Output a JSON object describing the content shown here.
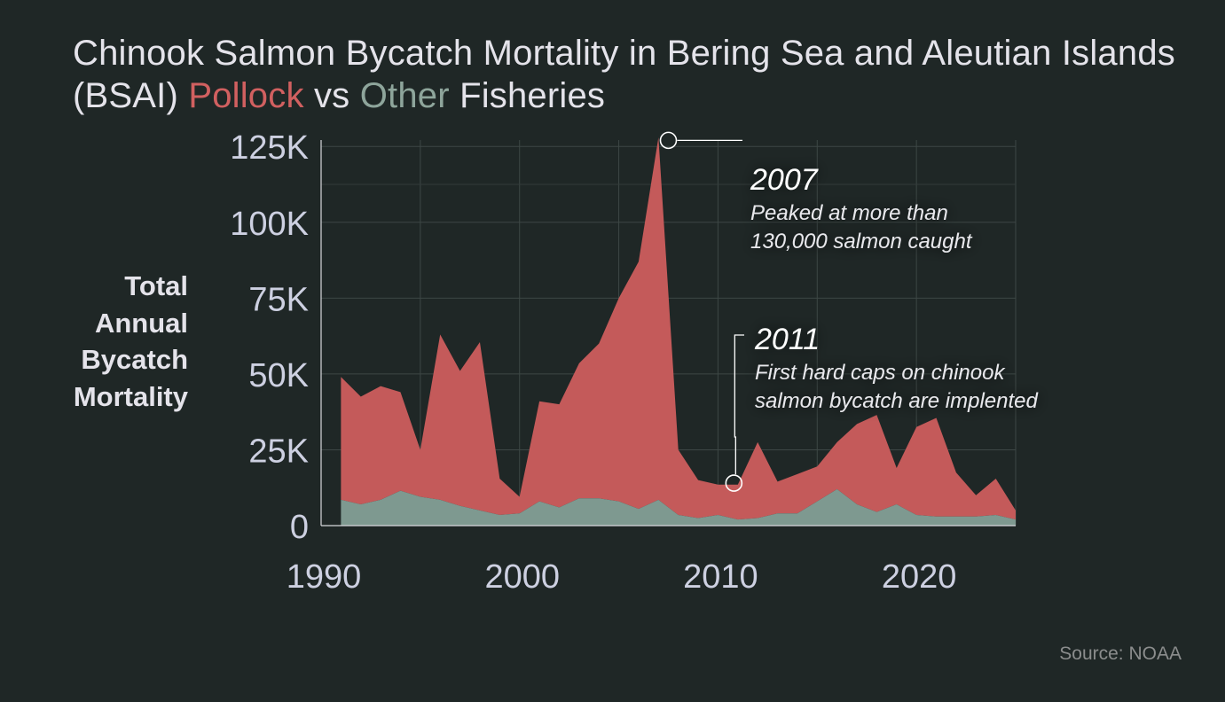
{
  "title": {
    "part1": "Chinook Salmon Bycatch Mortality in Bering Sea and Aleutian Islands (BSAI) ",
    "pollock": "Pollock",
    "mid": " vs ",
    "other": "Other",
    "part2": " Fisheries"
  },
  "ylabel_lines": [
    "Total",
    "Annual",
    "Bycatch",
    "Mortality"
  ],
  "source": "Source: NOAA",
  "chart_data": {
    "type": "area",
    "stacked": true,
    "x": [
      1991,
      1992,
      1993,
      1994,
      1995,
      1996,
      1997,
      1998,
      1999,
      2000,
      2001,
      2002,
      2003,
      2004,
      2005,
      2006,
      2007,
      2008,
      2009,
      2010,
      2011,
      2012,
      2013,
      2014,
      2015,
      2016,
      2017,
      2018,
      2019,
      2020,
      2021,
      2022,
      2023,
      2024,
      2025
    ],
    "series": [
      {
        "name": "Other",
        "color": "#7e9990",
        "values": [
          8500,
          7000,
          8500,
          11500,
          9500,
          8500,
          6500,
          5000,
          3500,
          4000,
          8000,
          6000,
          9000,
          9000,
          8000,
          5500,
          8500,
          3500,
          2500,
          3500,
          2000,
          2500,
          4000,
          4000,
          8000,
          12000,
          7000,
          4500,
          7000,
          3500,
          3000,
          3000,
          3000,
          3500,
          2000
        ]
      },
      {
        "name": "Pollock",
        "color": "#c45a5a",
        "values": [
          40500,
          35500,
          37500,
          32500,
          15500,
          54500,
          44500,
          55500,
          12000,
          5500,
          33000,
          34000,
          44500,
          51000,
          67000,
          81500,
          119500,
          21500,
          12500,
          10000,
          11500,
          25000,
          10500,
          13000,
          11500,
          15500,
          26500,
          32000,
          12000,
          29000,
          32500,
          14500,
          7000,
          12000,
          3000
        ]
      }
    ],
    "xlim": [
      1990,
      2025
    ],
    "ylim": [
      0,
      135000
    ],
    "yticks": [
      0,
      25000,
      50000,
      75000,
      100000,
      125000
    ],
    "ytick_labels": [
      "0",
      "25K",
      "50K",
      "75K",
      "100K",
      "125K"
    ],
    "xticks": [
      1990,
      2000,
      2010,
      2020
    ],
    "xtick_labels": [
      "1990",
      "2000",
      "2010",
      "2020"
    ],
    "grid": true,
    "annotations": [
      {
        "x": 2007.5,
        "y": 127000,
        "year": "2007",
        "lines": [
          "Peaked at more than",
          "130,000 salmon caught"
        ]
      },
      {
        "x": 2010.8,
        "y": 14000,
        "year": "2011",
        "lines": [
          "First hard caps on chinook",
          "salmon bycatch are implented"
        ]
      }
    ]
  }
}
